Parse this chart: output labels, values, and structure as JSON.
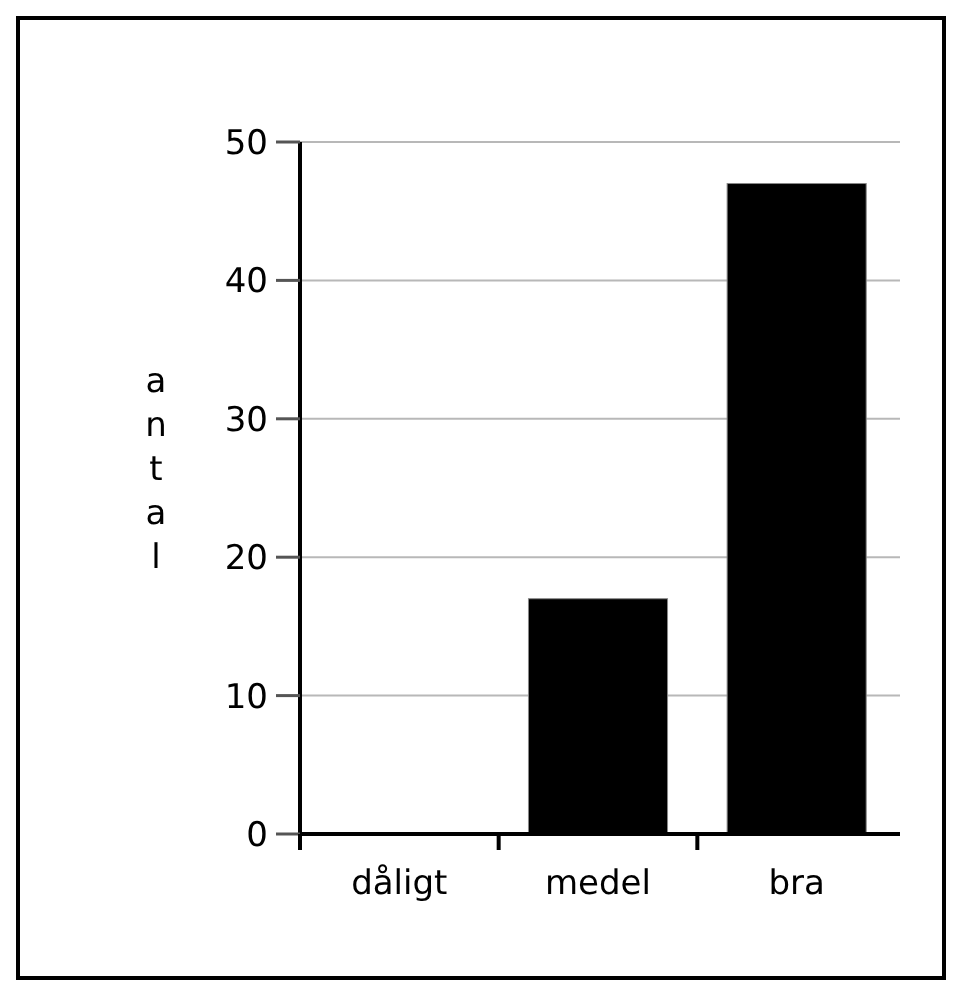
{
  "chart_data": {
    "type": "bar",
    "ylabel": "antal",
    "categories": [
      "dåligt",
      "medel",
      "bra"
    ],
    "values": [
      0,
      17,
      47
    ],
    "color": "#000000",
    "ylim": [
      0,
      50
    ],
    "yticks": [
      0,
      10,
      20,
      30,
      40,
      50
    ],
    "grid": "y"
  }
}
